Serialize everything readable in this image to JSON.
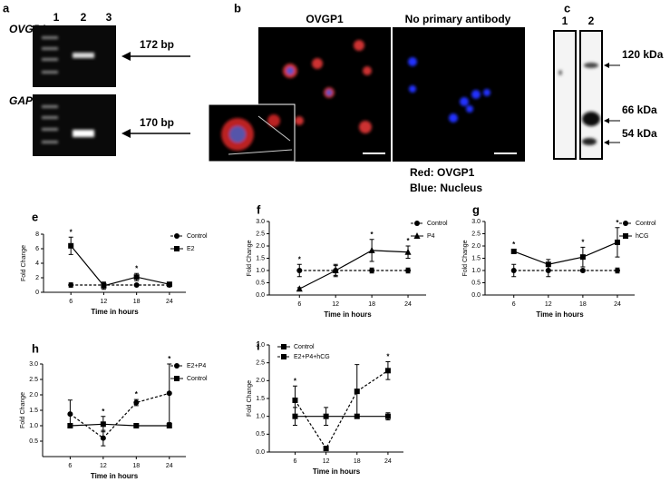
{
  "panel_a": {
    "letter": "a",
    "gene_top": "OVGP1",
    "gene_bottom": "GAPDH",
    "lanes": [
      "1",
      "2",
      "3"
    ],
    "size_top": "172 bp",
    "size_bottom": "170 bp"
  },
  "panel_b": {
    "letter": "b",
    "title_left": "OVGP1",
    "title_right": "No primary antibody",
    "legend_red": "Red: OVGP1",
    "legend_blue": "Blue: Nucleus"
  },
  "panel_c": {
    "letter": "c",
    "lanes": [
      "1",
      "2"
    ],
    "markers": [
      "120 kDa",
      "66 kDa",
      "54 kDa"
    ]
  },
  "chart_data": [
    {
      "type": "line",
      "panel": "e",
      "x_label": "Time in hours",
      "y_label": "Fold Change",
      "x": [
        6,
        12,
        18,
        24
      ],
      "xlim": [
        1,
        27
      ],
      "xticks": [
        6,
        12,
        18,
        24
      ],
      "ylim": [
        0,
        8
      ],
      "yticks": [
        0,
        2,
        4,
        6,
        8
      ],
      "legend": "right",
      "series": [
        {
          "name": "Control",
          "color": "#000000",
          "marker": "circle",
          "dashed": true,
          "values": [
            1,
            1,
            1,
            1
          ],
          "errors": [
            0.3,
            0.3,
            0.1,
            0.2
          ]
        },
        {
          "name": "E2",
          "color": "#000000",
          "marker": "square",
          "dashed": false,
          "values": [
            6.4,
            0.9,
            2.1,
            1.1
          ],
          "errors": [
            1.2,
            0.5,
            0.5,
            0.2
          ]
        }
      ],
      "annotations": [
        {
          "x": 6,
          "text": "*"
        },
        {
          "x": 18,
          "text": "*"
        }
      ]
    },
    {
      "type": "line",
      "panel": "f",
      "x_label": "Time in hours",
      "y_label": "Fold Change",
      "x": [
        6,
        12,
        18,
        24
      ],
      "xlim": [
        1,
        27
      ],
      "xticks": [
        6,
        12,
        18,
        24
      ],
      "ylim": [
        0,
        3
      ],
      "yticks": [
        {
          "value": 0,
          "label": "0.0"
        },
        0.5,
        {
          "value": 1,
          "label": "1.0"
        },
        1.5,
        {
          "value": 2,
          "label": "2.0"
        },
        2.5,
        {
          "value": 3,
          "label": "3.0"
        }
      ],
      "legend": "right",
      "series": [
        {
          "name": "Control",
          "color": "#000000",
          "marker": "circle",
          "dashed": true,
          "values": [
            1,
            1,
            1,
            1
          ],
          "errors": [
            0.25,
            0.2,
            0.1,
            0.1
          ]
        },
        {
          "name": "P4",
          "color": "#000000",
          "marker": "triangle",
          "dashed": false,
          "values": [
            0.25,
            1.0,
            1.82,
            1.75
          ],
          "errors": [
            0.05,
            0.25,
            0.45,
            0.25
          ]
        }
      ],
      "annotations": [
        {
          "x": 6,
          "text": "*"
        },
        {
          "x": 18,
          "text": "*"
        },
        {
          "x": 24,
          "text": "*"
        }
      ]
    },
    {
      "type": "line",
      "panel": "g",
      "x_label": "Time in hours",
      "y_label": "Fold Change",
      "x": [
        6,
        12,
        18,
        24
      ],
      "xlim": [
        1,
        27
      ],
      "xticks": [
        6,
        12,
        18,
        24
      ],
      "ylim": [
        0,
        3
      ],
      "yticks": [
        {
          "value": 0,
          "label": "0.0"
        },
        0.5,
        {
          "value": 1,
          "label": "1.0"
        },
        1.5,
        {
          "value": 2,
          "label": "2.0"
        },
        2.5,
        {
          "value": 3,
          "label": "3.0"
        }
      ],
      "legend": "right",
      "series": [
        {
          "name": "Control",
          "color": "#000000",
          "marker": "circle",
          "dashed": true,
          "values": [
            1,
            1,
            1,
            1
          ],
          "errors": [
            0.25,
            0.25,
            0.05,
            0.1
          ]
        },
        {
          "name": "hCG",
          "color": "#000000",
          "marker": "square",
          "dashed": false,
          "values": [
            1.78,
            1.25,
            1.55,
            2.15
          ],
          "errors": [
            0.08,
            0.2,
            0.4,
            0.6
          ]
        }
      ],
      "annotations": [
        {
          "x": 6,
          "text": "*"
        },
        {
          "x": 18,
          "text": "*"
        },
        {
          "x": 24,
          "text": "*"
        }
      ]
    },
    {
      "type": "line",
      "panel": "h",
      "x_label": "Time in hours",
      "y_label": "Fold Change",
      "x": [
        6,
        12,
        18,
        24
      ],
      "xlim": [
        1,
        27
      ],
      "xticks": [
        6,
        12,
        18,
        24
      ],
      "ylim": [
        0,
        3
      ],
      "yticks": [
        0.5,
        {
          "value": 1,
          "label": "1.0"
        },
        1.5,
        {
          "value": 2,
          "label": "2.0"
        },
        2.5,
        {
          "value": 3,
          "label": "3.0"
        }
      ],
      "legend": "right",
      "series": [
        {
          "name": "E2+P4",
          "color": "#000000",
          "marker": "circle",
          "dashed": true,
          "values": [
            1.38,
            0.6,
            1.75,
            2.05
          ],
          "errors": [
            0.45,
            0.25,
            0.1,
            0.95
          ]
        },
        {
          "name": "Control",
          "color": "#000000",
          "marker": "square",
          "dashed": false,
          "values": [
            1,
            1.05,
            1,
            1
          ],
          "errors": [
            0.05,
            0.25,
            0.05,
            0.05
          ]
        }
      ],
      "annotations": [
        {
          "x": 12,
          "text": "*"
        },
        {
          "x": 18,
          "text": "*"
        },
        {
          "x": 24,
          "text": "*"
        }
      ]
    },
    {
      "type": "line",
      "panel": "i",
      "x_label": "Time in hours",
      "y_label": "Fold Change",
      "x": [
        6,
        12,
        18,
        24
      ],
      "xlim": [
        1,
        27
      ],
      "xticks": [
        6,
        12,
        18,
        24
      ],
      "ylim": [
        0,
        3
      ],
      "yticks": [
        {
          "value": 0,
          "label": "0.0"
        },
        0.5,
        {
          "value": 1,
          "label": "1.0"
        },
        1.5,
        {
          "value": 2,
          "label": "2.0"
        },
        2.5,
        {
          "value": 3,
          "label": "3.0"
        }
      ],
      "legend": "upper left",
      "series": [
        {
          "name": "Control",
          "color": "#000000",
          "marker": "square",
          "dashed": false,
          "values": [
            1,
            1,
            1,
            1
          ],
          "errors": [
            0.25,
            0.25,
            0.05,
            0.1
          ]
        },
        {
          "name": "E2+P4+hCG",
          "color": "#000000",
          "marker": "square",
          "dashed": true,
          "values": [
            1.45,
            0.1,
            1.7,
            2.28
          ],
          "errors": [
            0.4,
            0.05,
            0.75,
            0.25
          ]
        }
      ],
      "annotations": [
        {
          "x": 6,
          "text": "*"
        },
        {
          "x": 24,
          "text": "*"
        }
      ]
    }
  ]
}
